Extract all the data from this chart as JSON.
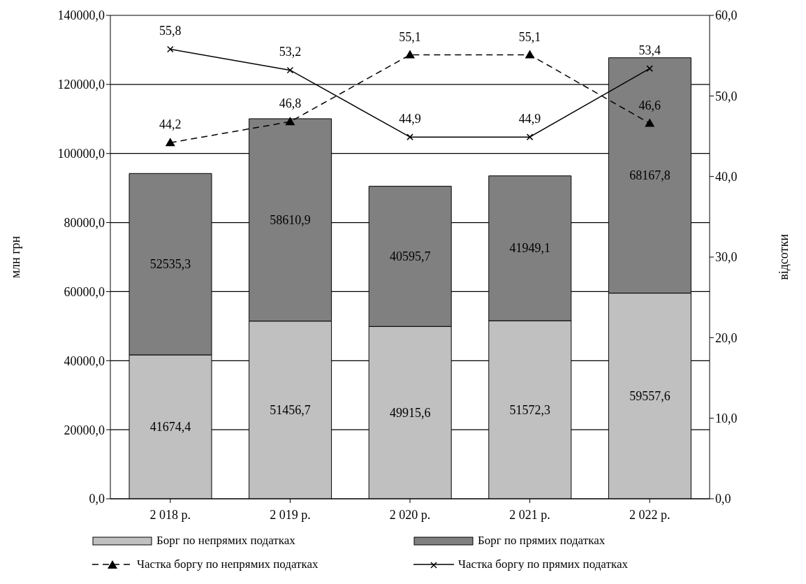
{
  "chart_data": {
    "type": "bar",
    "stacked": true,
    "categories": [
      "2 018 р.",
      "2 019 р.",
      "2 020 р.",
      "2 021 р.",
      "2 022 р."
    ],
    "ylabel": "млн грн",
    "y2label": "відсотки",
    "ylim": [
      0,
      140000
    ],
    "yticks": [
      {
        "value": 0,
        "label": "0,0"
      },
      {
        "value": 20000,
        "label": "20000,0"
      },
      {
        "value": 40000,
        "label": "40000,0"
      },
      {
        "value": 60000,
        "label": "60000,0"
      },
      {
        "value": 80000,
        "label": "80000,0"
      },
      {
        "value": 100000,
        "label": "100000,0"
      },
      {
        "value": 120000,
        "label": "120000,0"
      },
      {
        "value": 140000,
        "label": "140000,0"
      }
    ],
    "y2lim": [
      0,
      60
    ],
    "y2ticks": [
      {
        "value": 0,
        "label": "0,0"
      },
      {
        "value": 10,
        "label": "10,0"
      },
      {
        "value": 20,
        "label": "20,0"
      },
      {
        "value": 30,
        "label": "30,0"
      },
      {
        "value": 40,
        "label": "40,0"
      },
      {
        "value": 50,
        "label": "50,0"
      },
      {
        "value": 60,
        "label": "60,0"
      }
    ],
    "grid": "y",
    "legend": "bottom",
    "series": [
      {
        "name": "Борг по непрямих податках",
        "color": "#c0c0c0",
        "values": [
          41674.4,
          51456.7,
          49915.6,
          51572.3,
          59557.6
        ],
        "value_labels": [
          "41674,4",
          "51456,7",
          "49915,6",
          "51572,3",
          "59557,6"
        ]
      },
      {
        "name": "Борг по прямих податках",
        "color": "#808080",
        "values": [
          52535.3,
          58610.9,
          40595.7,
          41949.1,
          68167.8
        ],
        "value_labels": [
          "52535,3",
          "58610,9",
          "40595,7",
          "41949,1",
          "68167,8"
        ]
      },
      {
        "name": "Частка боргу по непрямих податках",
        "type": "line",
        "axis": "y2",
        "color": "#000000",
        "marker": "triangle",
        "line_style": "dashed",
        "values": [
          44.2,
          46.8,
          55.1,
          55.1,
          46.6
        ],
        "value_labels": [
          "44,2",
          "46,8",
          "55,1",
          "55,1",
          "46,6"
        ]
      },
      {
        "name": "Частка боргу по прямих податках",
        "type": "line",
        "axis": "y2",
        "color": "#000000",
        "marker": "cross",
        "line_style": "solid",
        "values": [
          55.8,
          53.2,
          44.9,
          44.9,
          53.4
        ],
        "value_labels": [
          "55,8",
          "53,2",
          "44,9",
          "44,9",
          "53,4"
        ]
      }
    ]
  }
}
